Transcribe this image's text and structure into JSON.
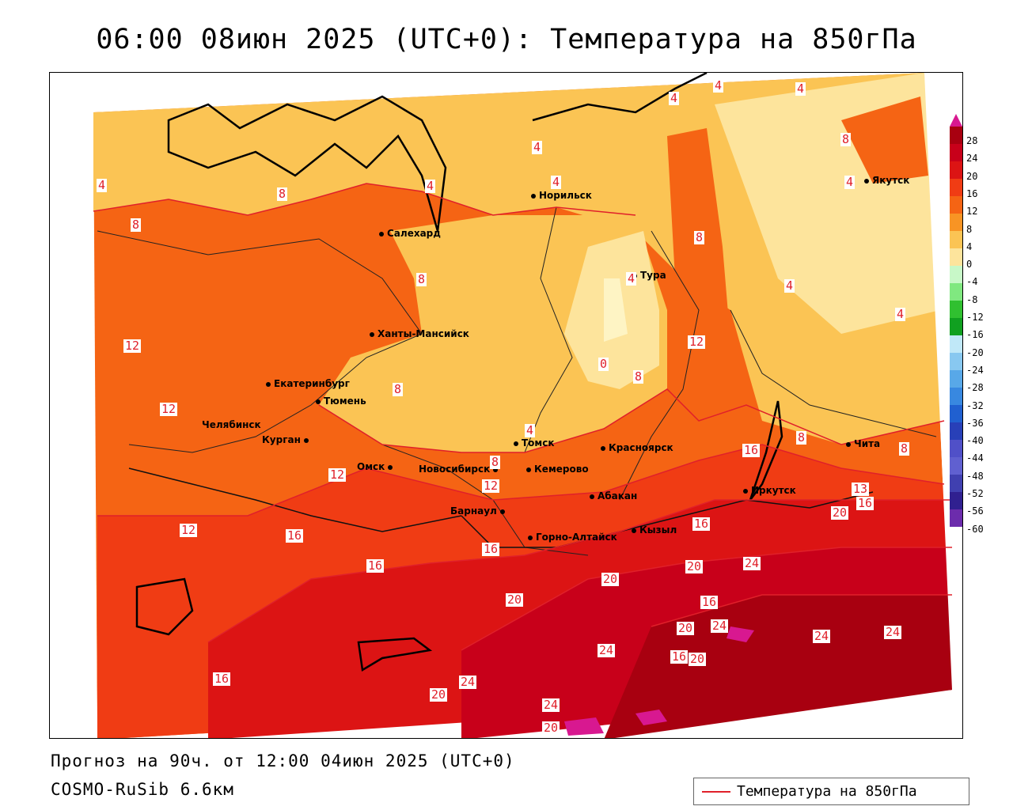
{
  "title": "06:00 08июн 2025 (UTC+0): Температура на 850гПа",
  "footer": {
    "forecast": "Прогноз на 90ч. от 12:00 04июн 2025 (UTC+0)",
    "model": "COSMO-RuSib 6.6км"
  },
  "legend": {
    "label": "Температура на 850гПа",
    "color": "#e0202a"
  },
  "colorbar": {
    "labels": [
      "28",
      "24",
      "20",
      "16",
      "12",
      "8",
      "4",
      "0",
      "-4",
      "-8",
      "-12",
      "-16",
      "-20",
      "-24",
      "-28",
      "-32",
      "-36",
      "-40",
      "-44",
      "-48",
      "-52",
      "-56",
      "-60"
    ],
    "colors": [
      "#a80010",
      "#c8001a",
      "#dc1414",
      "#f03c14",
      "#f56414",
      "#f89424",
      "#fbc454",
      "#fde49c",
      "#c8f8c8",
      "#80e880",
      "#30c030",
      "#10a020",
      "#c0e8f8",
      "#88c8f0",
      "#58a8e8",
      "#3888e0",
      "#2060d0",
      "#2840b8",
      "#5050c8",
      "#6060d0",
      "#4040b0",
      "#302090",
      "#6c2cac"
    ],
    "top_color": "#d81890"
  },
  "cities": [
    {
      "name": "Норильск"
    },
    {
      "name": "Салехард"
    },
    {
      "name": "Тура"
    },
    {
      "name": "Якутск"
    },
    {
      "name": "Ханты-Мансийск"
    },
    {
      "name": "Екатеринбург"
    },
    {
      "name": "Тюмень"
    },
    {
      "name": "Челябинск"
    },
    {
      "name": "Курган"
    },
    {
      "name": "Омск"
    },
    {
      "name": "Новосибирск"
    },
    {
      "name": "Томск"
    },
    {
      "name": "Кемерово"
    },
    {
      "name": "Красноярск"
    },
    {
      "name": "Абакан"
    },
    {
      "name": "Барнаул"
    },
    {
      "name": "Горно-Алтайск"
    },
    {
      "name": "Кызыл"
    },
    {
      "name": "Иркутск"
    },
    {
      "name": "Чита"
    }
  ],
  "isolines": [
    "4",
    "4",
    "4",
    "8",
    "4",
    "4",
    "4",
    "4",
    "4",
    "8",
    "8",
    "8",
    "4",
    "4",
    "8",
    "4",
    "0",
    "8",
    "12",
    "12",
    "8",
    "12",
    "4",
    "16",
    "8",
    "8",
    "12",
    "8",
    "12",
    "13",
    "16",
    "20",
    "12",
    "16",
    "16",
    "16",
    "16",
    "20",
    "24",
    "20",
    "20",
    "16",
    "24",
    "24",
    "24",
    "20",
    "16",
    "20",
    "24",
    "16",
    "24",
    "24",
    "20",
    "20"
  ]
}
